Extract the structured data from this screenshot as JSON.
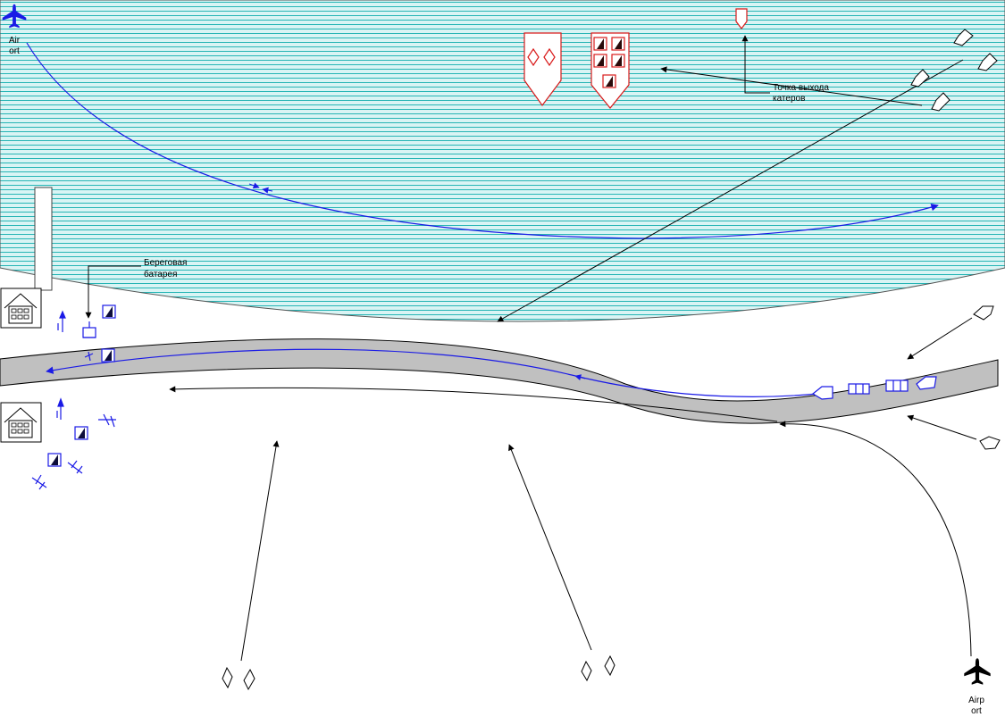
{
  "labels": {
    "airport_top": [
      "Air",
      "ort"
    ],
    "airport_bottom": [
      "Airp",
      "ort"
    ],
    "boat_exit_point": [
      "Точка выхода",
      "катеров"
    ],
    "coastal_battery": [
      "Береговая",
      "батарея"
    ]
  },
  "colors": {
    "water_fill": "#d9f4f4",
    "water_stripes": "#26b5b5",
    "road": "#c0c0c0",
    "friendly": "#1a1ae6",
    "enemy": "#d91a1a",
    "neutral": "#000000"
  },
  "icons": [
    "airplane-icon",
    "house-icon",
    "boat-icon",
    "warship-icon",
    "artillery-unit-icon",
    "coastal-battery-icon",
    "ship-icon"
  ]
}
